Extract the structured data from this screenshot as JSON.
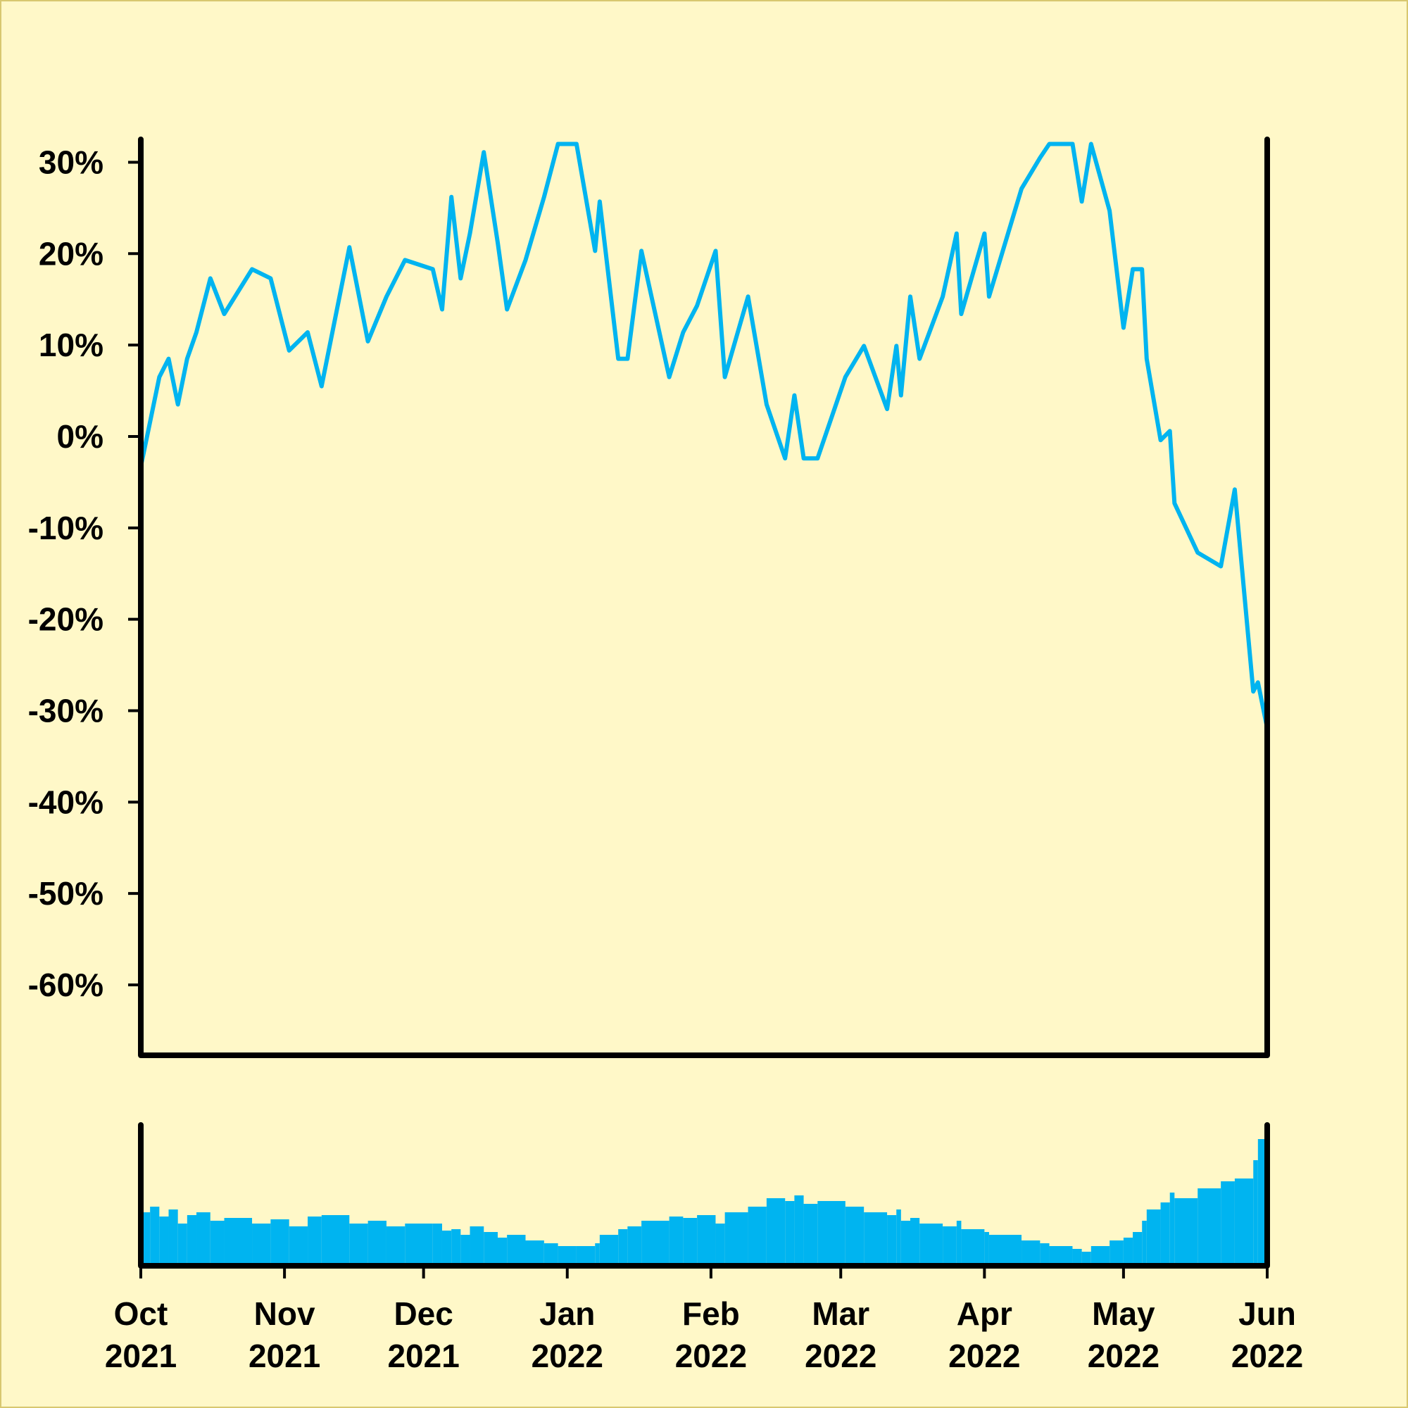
{
  "chart_data": [
    {
      "type": "line",
      "color": "#00b4f0",
      "x": [
        "2021-10-01",
        "2021-10-03",
        "2021-10-05",
        "2021-10-07",
        "2021-10-09",
        "2021-10-11",
        "2021-10-13",
        "2021-10-16",
        "2021-10-19",
        "2021-10-25",
        "2021-10-29",
        "2021-11-02",
        "2021-11-06",
        "2021-11-09",
        "2021-11-15",
        "2021-11-19",
        "2021-11-23",
        "2021-11-27",
        "2021-12-03",
        "2021-12-05",
        "2021-12-07",
        "2021-12-09",
        "2021-12-11",
        "2021-12-14",
        "2021-12-17",
        "2021-12-19",
        "2021-12-23",
        "2021-12-27",
        "2021-12-30",
        "2022-01-03",
        "2022-01-07",
        "2022-01-08",
        "2022-01-12",
        "2022-01-14",
        "2022-01-17",
        "2022-01-23",
        "2022-01-26",
        "2022-01-29",
        "2022-02-02",
        "2022-02-04",
        "2022-02-09",
        "2022-02-13",
        "2022-02-17",
        "2022-02-19",
        "2022-02-21",
        "2022-02-24",
        "2022-03-02",
        "2022-03-06",
        "2022-03-11",
        "2022-03-13",
        "2022-03-14",
        "2022-03-16",
        "2022-03-18",
        "2022-03-23",
        "2022-03-26",
        "2022-03-27",
        "2022-04-01",
        "2022-04-02",
        "2022-04-09",
        "2022-04-13",
        "2022-04-15",
        "2022-04-20",
        "2022-04-22",
        "2022-04-24",
        "2022-04-28",
        "2022-05-01",
        "2022-05-03",
        "2022-05-05",
        "2022-05-06",
        "2022-05-09",
        "2022-05-11",
        "2022-05-12",
        "2022-05-17",
        "2022-05-22",
        "2022-05-25",
        "2022-05-29",
        "2022-05-30",
        "2022-06-01"
      ],
      "values": [
        -3.3,
        1.6,
        6.5,
        8.5,
        3.5,
        8.5,
        11.4,
        17.3,
        13.4,
        18.3,
        17.3,
        9.4,
        11.4,
        5.5,
        20.7,
        10.4,
        15.3,
        19.3,
        18.3,
        13.9,
        26.2,
        17.3,
        22.2,
        31.1,
        21.2,
        13.9,
        19.3,
        26.2,
        32,
        32,
        20.3,
        25.7,
        8.5,
        8.5,
        20.3,
        6.5,
        11.4,
        14.3,
        20.3,
        6.5,
        15.3,
        3.5,
        -2.4,
        4.5,
        -2.4,
        -2.4,
        6.5,
        9.9,
        3,
        9.9,
        4.5,
        15.3,
        8.5,
        15.3,
        22.2,
        13.4,
        22.2,
        15.3,
        27.1,
        30.5,
        32,
        32,
        25.7,
        32,
        24.7,
        11.9,
        18.3,
        18.3,
        8.5,
        -0.4,
        0.6,
        -7.3,
        -12.7,
        -14.2,
        -5.8,
        -27.9,
        -26.9,
        -31.9
      ],
      "xlim": [
        "2021-10-01",
        "2022-06-01"
      ],
      "ylim": [
        -67.7,
        32.5
      ],
      "yticks": [
        {
          "value": 30,
          "label": "30%"
        },
        {
          "value": 20,
          "label": "20%"
        },
        {
          "value": 10,
          "label": "10%"
        },
        {
          "value": 0,
          "label": "0%"
        },
        {
          "value": -10,
          "label": "-10%"
        },
        {
          "value": -20,
          "label": "-20%"
        },
        {
          "value": -30,
          "label": "-30%"
        },
        {
          "value": -40,
          "label": "-40%"
        },
        {
          "value": -50,
          "label": "-50%"
        },
        {
          "value": -60,
          "label": "-60%"
        }
      ]
    },
    {
      "type": "bar",
      "color": "#00b4f0",
      "x": [
        "2021-10-01",
        "2021-10-03",
        "2021-10-05",
        "2021-10-07",
        "2021-10-09",
        "2021-10-11",
        "2021-10-13",
        "2021-10-16",
        "2021-10-19",
        "2021-10-25",
        "2021-10-29",
        "2021-11-02",
        "2021-11-06",
        "2021-11-09",
        "2021-11-15",
        "2021-11-19",
        "2021-11-23",
        "2021-11-27",
        "2021-12-03",
        "2021-12-05",
        "2021-12-07",
        "2021-12-09",
        "2021-12-11",
        "2021-12-14",
        "2021-12-17",
        "2021-12-19",
        "2021-12-23",
        "2021-12-27",
        "2021-12-30",
        "2022-01-03",
        "2022-01-07",
        "2022-01-08",
        "2022-01-12",
        "2022-01-14",
        "2022-01-17",
        "2022-01-23",
        "2022-01-26",
        "2022-01-29",
        "2022-02-02",
        "2022-02-04",
        "2022-02-09",
        "2022-02-13",
        "2022-02-17",
        "2022-02-19",
        "2022-02-21",
        "2022-02-24",
        "2022-03-02",
        "2022-03-06",
        "2022-03-11",
        "2022-03-13",
        "2022-03-14",
        "2022-03-16",
        "2022-03-18",
        "2022-03-23",
        "2022-03-26",
        "2022-03-27",
        "2022-04-01",
        "2022-04-02",
        "2022-04-09",
        "2022-04-13",
        "2022-04-15",
        "2022-04-20",
        "2022-04-22",
        "2022-04-24",
        "2022-04-28",
        "2022-05-01",
        "2022-05-03",
        "2022-05-05",
        "2022-05-06",
        "2022-05-09",
        "2022-05-11",
        "2022-05-12",
        "2022-05-17",
        "2022-05-22",
        "2022-05-25",
        "2022-05-29",
        "2022-05-30",
        "2022-06-01"
      ],
      "values": [
        38,
        42,
        35,
        40,
        30,
        36,
        38,
        32,
        34,
        30,
        33,
        28,
        35,
        36,
        30,
        32,
        28,
        30,
        30,
        25,
        26,
        22,
        28,
        24,
        20,
        22,
        18,
        16,
        14,
        14,
        16,
        22,
        26,
        28,
        32,
        35,
        34,
        36,
        30,
        38,
        42,
        48,
        46,
        50,
        44,
        46,
        42,
        38,
        36,
        40,
        32,
        34,
        30,
        28,
        32,
        26,
        24,
        22,
        18,
        16,
        14,
        12,
        10,
        14,
        18,
        20,
        24,
        32,
        40,
        45,
        52,
        48,
        55,
        60,
        62,
        75,
        90,
        55
      ],
      "xlim": [
        "2021-10-01",
        "2022-06-01"
      ],
      "ylim": [
        0,
        100
      ],
      "xticks": [
        {
          "value": "2021-10-01",
          "label": [
            "Oct",
            "2021"
          ]
        },
        {
          "value": "2021-11-01",
          "label": [
            "Nov",
            "2021"
          ]
        },
        {
          "value": "2021-12-01",
          "label": [
            "Dec",
            "2021"
          ]
        },
        {
          "value": "2022-01-01",
          "label": [
            "Jan",
            "2022"
          ]
        },
        {
          "value": "2022-02-01",
          "label": [
            "Feb",
            "2022"
          ]
        },
        {
          "value": "2022-03-01",
          "label": [
            "Mar",
            "2022"
          ]
        },
        {
          "value": "2022-04-01",
          "label": [
            "Apr",
            "2022"
          ]
        },
        {
          "value": "2022-05-01",
          "label": [
            "May",
            "2022"
          ]
        },
        {
          "value": "2022-06-01",
          "label": [
            "Jun",
            "2022"
          ]
        }
      ]
    }
  ]
}
